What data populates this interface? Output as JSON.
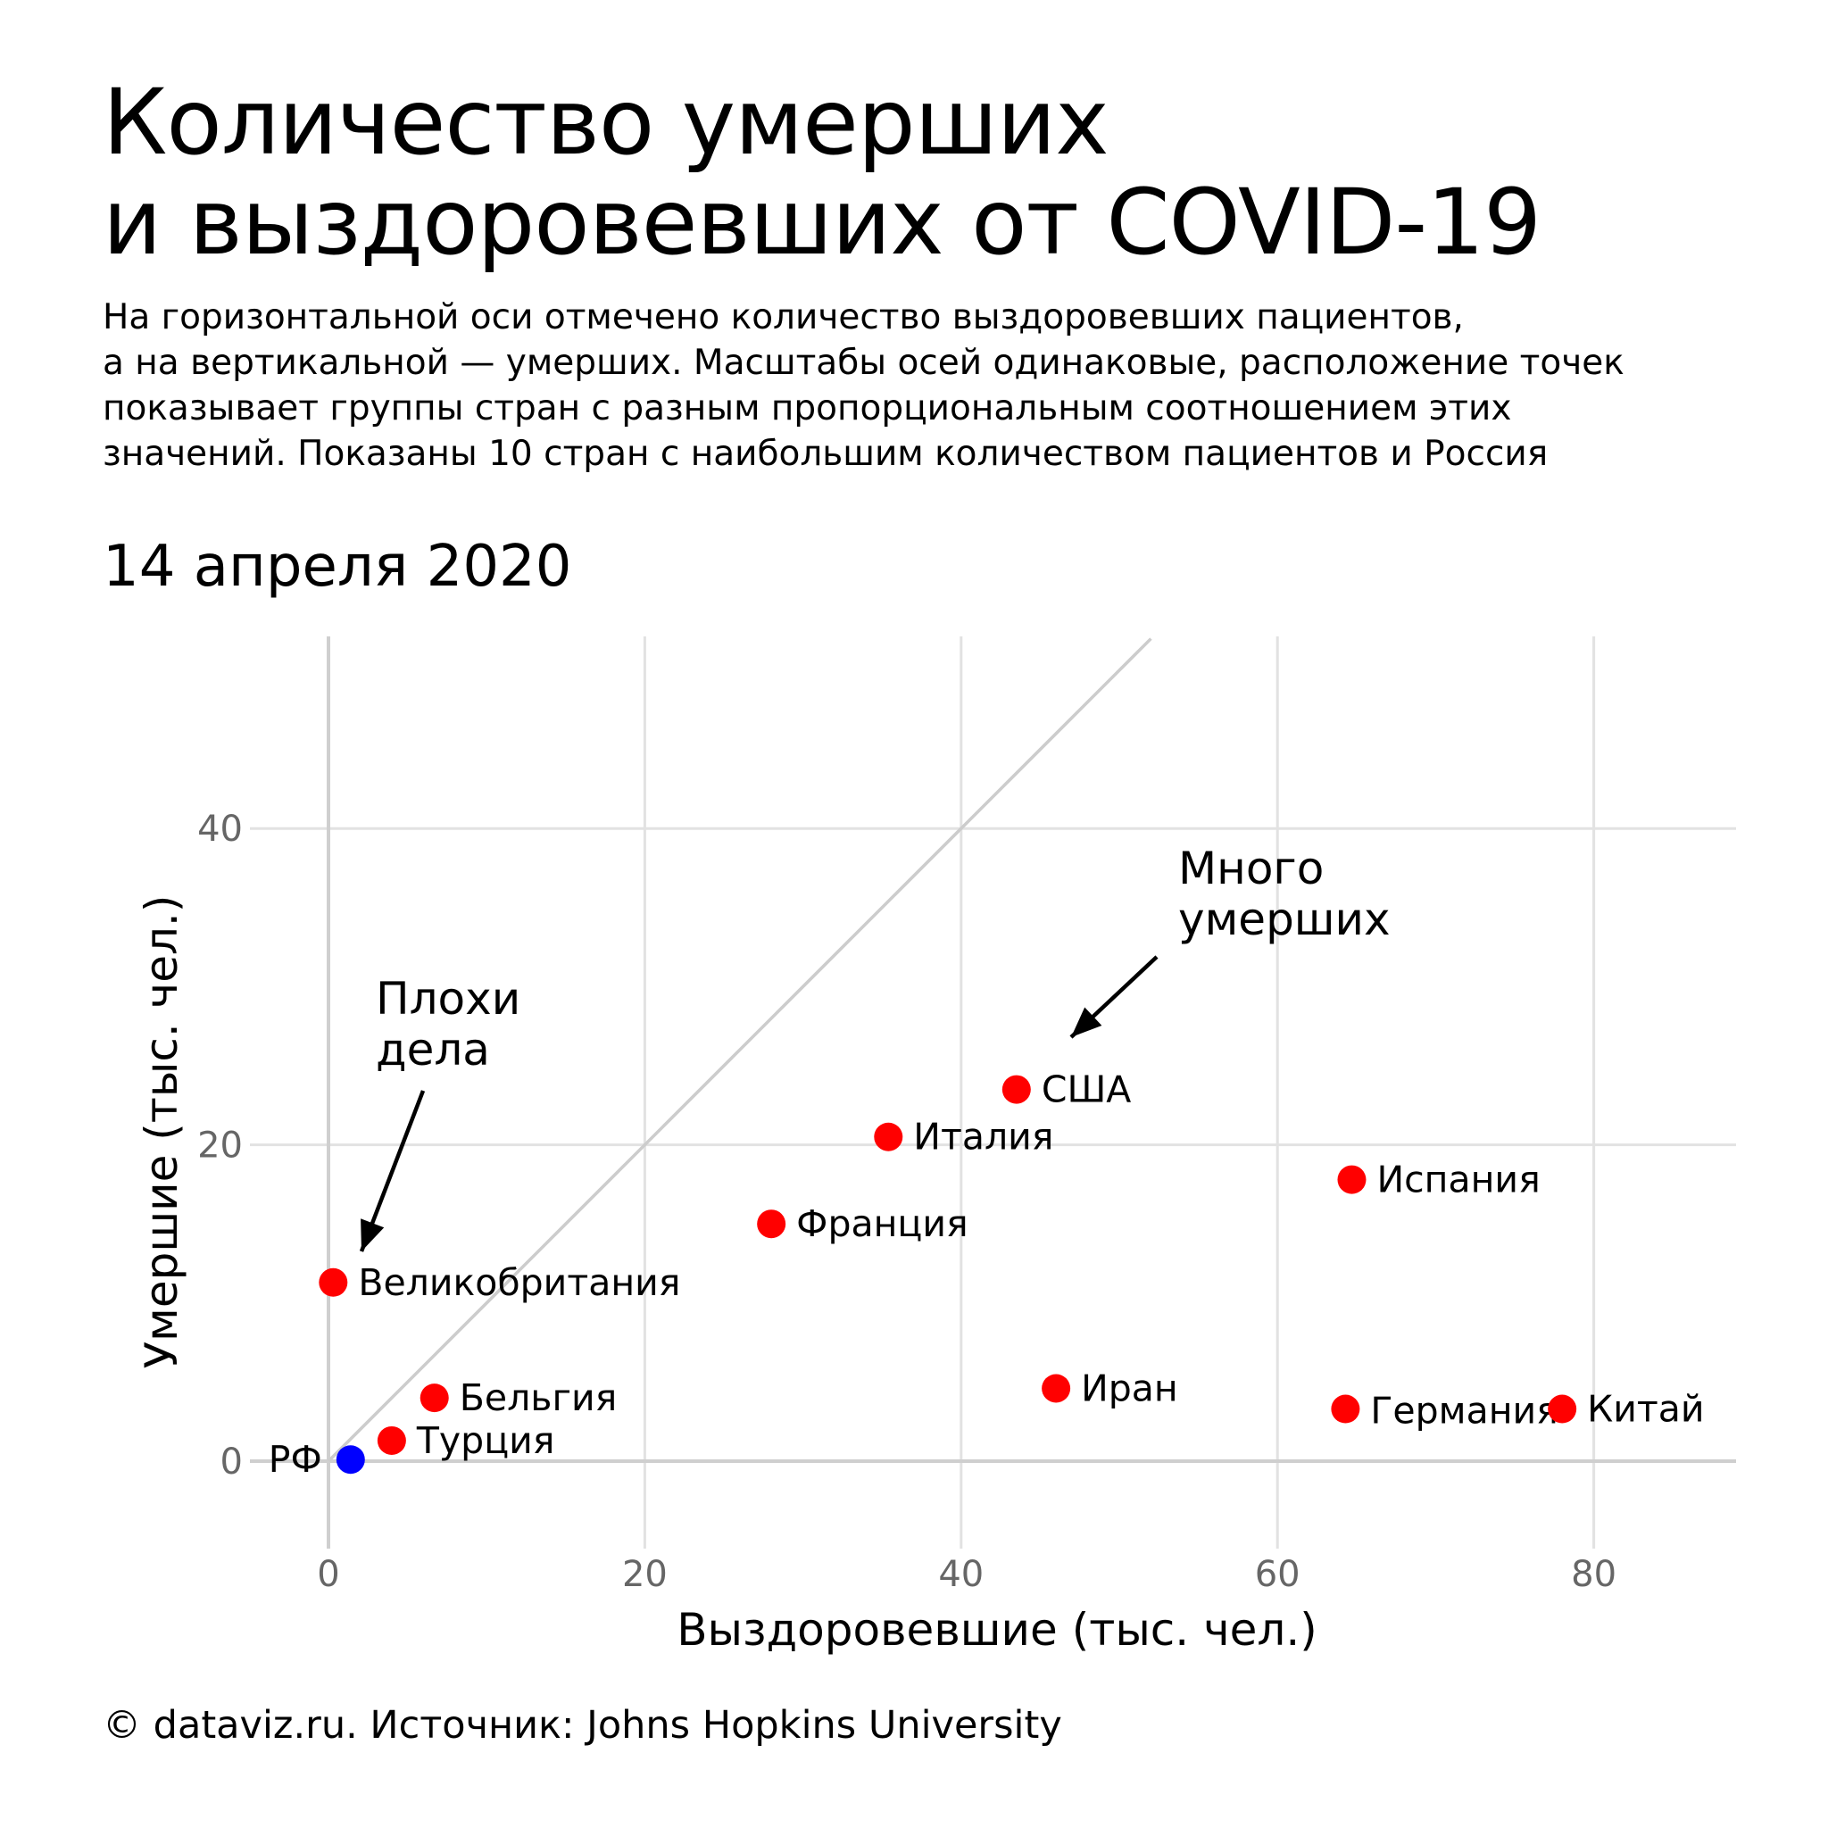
{
  "title_lines": [
    "Количество умерших",
    "и выздоровевших от COVID-19"
  ],
  "subtitle_lines": [
    "На горизонтальной оси отмечено количество выздоровевших пациентов,",
    "а на вертикальной — умерших. Масштабы осей одинаковые, расположение точек",
    "показывает группы стран с разным пропорциональным соотношением этих",
    "значений. Показаны 10 стран с наибольшим количеством пациентов и Россия"
  ],
  "date_label": "14 апреля 2020",
  "footer": "© dataviz.ru. Источник: Johns Hopkins University",
  "chart_data": {
    "type": "scatter",
    "xlabel": "Выздоровевшие (тыс. чел.)",
    "ylabel": "Умершие (тыс. чел.)",
    "xlim": [
      -5,
      90
    ],
    "ylim": [
      -4,
      52
    ],
    "xticks": [
      0,
      20,
      40,
      60,
      80
    ],
    "yticks": [
      0,
      20,
      40
    ],
    "grid": true,
    "reference_line": {
      "slope": 1,
      "from": [
        0,
        0
      ],
      "to": [
        52,
        52
      ],
      "color": "#cccccc"
    },
    "point_colors": {
      "default": "#ff0000",
      "highlight": "#0000ff"
    },
    "points": [
      {
        "label": "США",
        "x": 43.5,
        "y": 23.5,
        "highlight": false
      },
      {
        "label": "Италия",
        "x": 35.4,
        "y": 20.5,
        "highlight": false
      },
      {
        "label": "Испания",
        "x": 64.7,
        "y": 17.8,
        "highlight": false
      },
      {
        "label": "Франция",
        "x": 28.0,
        "y": 15.0,
        "highlight": false
      },
      {
        "label": "Великобритания",
        "x": 0.3,
        "y": 11.3,
        "highlight": false
      },
      {
        "label": "Иран",
        "x": 46.0,
        "y": 4.6,
        "highlight": false
      },
      {
        "label": "Германия",
        "x": 64.3,
        "y": 3.3,
        "highlight": false
      },
      {
        "label": "Китай",
        "x": 78.0,
        "y": 3.3,
        "highlight": false
      },
      {
        "label": "Бельгия",
        "x": 6.7,
        "y": 4.0,
        "highlight": false
      },
      {
        "label": "Турция",
        "x": 4.0,
        "y": 1.3,
        "highlight": false
      },
      {
        "label": "РФ",
        "x": 1.4,
        "y": 0.1,
        "highlight": true
      }
    ],
    "annotations": [
      {
        "lines": [
          "Плохи",
          "дела"
        ],
        "points_to": "Великобритания"
      },
      {
        "lines": [
          "Много",
          "умерших"
        ],
        "points_to": "США"
      }
    ]
  }
}
